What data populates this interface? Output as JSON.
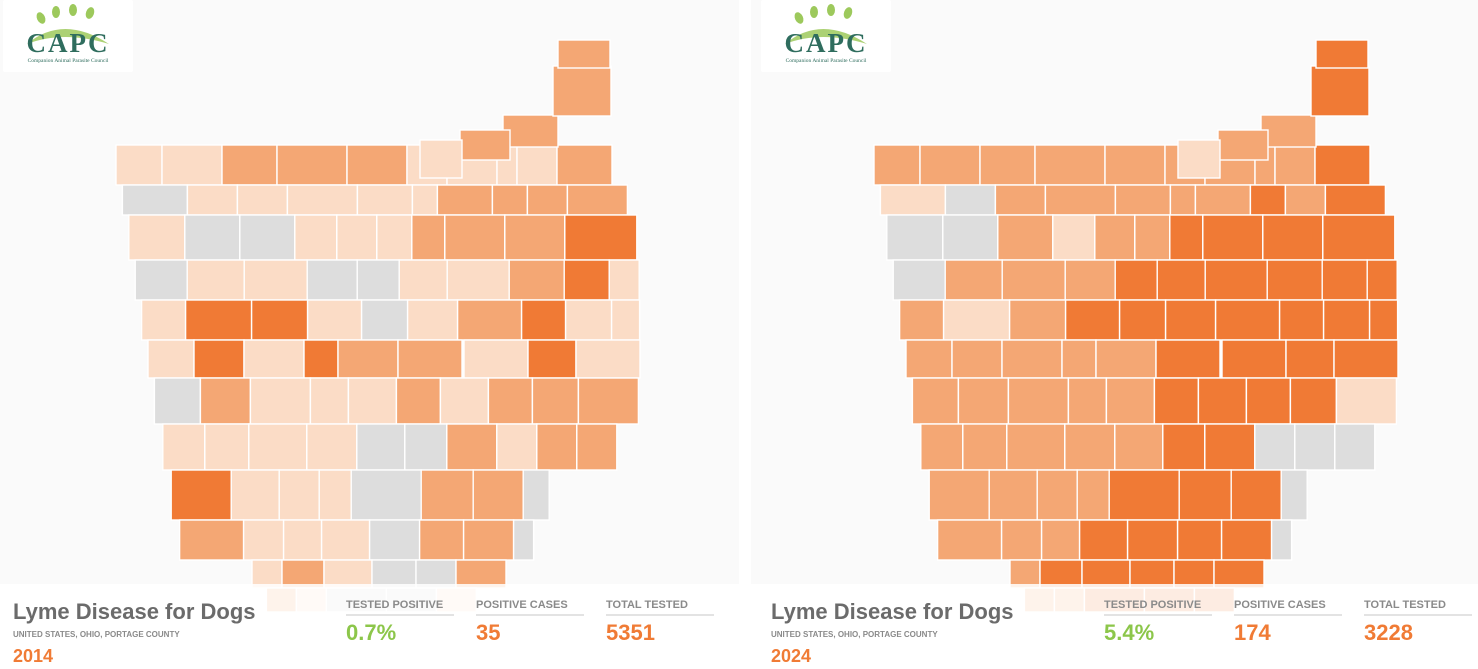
{
  "colors": {
    "no_data": "#dddddd",
    "level1": "#fbdcc6",
    "level2": "#f4a774",
    "level3": "#f07a35",
    "positive_rate": "#8cc64a",
    "accent": "#f07b35",
    "logo_green": "#2f6d5e",
    "logo_paw": "#9dc95c"
  },
  "panels": [
    {
      "logo": {
        "text": "CAPC",
        "subtitle": "Companion Animal Parasite Council"
      },
      "title": "Lyme Disease for Dogs",
      "location": "UNITED STATES, OHIO, PORTAGE COUNTY",
      "year": "2014",
      "stats": [
        {
          "label": "TESTED POSITIVE",
          "value": "0.7%",
          "tone": "green"
        },
        {
          "label": "POSITIVE CASES",
          "value": "35",
          "tone": "orange"
        },
        {
          "label": "TOTAL TESTED",
          "value": "5351",
          "tone": "orange"
        }
      ]
    },
    {
      "logo": {
        "text": "CAPC",
        "subtitle": "Companion Animal Parasite Council"
      },
      "title": "Lyme Disease for Dogs",
      "location": "UNITED STATES, OHIO, PORTAGE COUNTY",
      "year": "2024",
      "stats": [
        {
          "label": "TESTED POSITIVE",
          "value": "5.4%",
          "tone": "green"
        },
        {
          "label": "POSITIVE CASES",
          "value": "174",
          "tone": "orange"
        },
        {
          "label": "TOTAL TESTED",
          "value": "3228",
          "tone": "orange"
        }
      ]
    }
  ]
}
